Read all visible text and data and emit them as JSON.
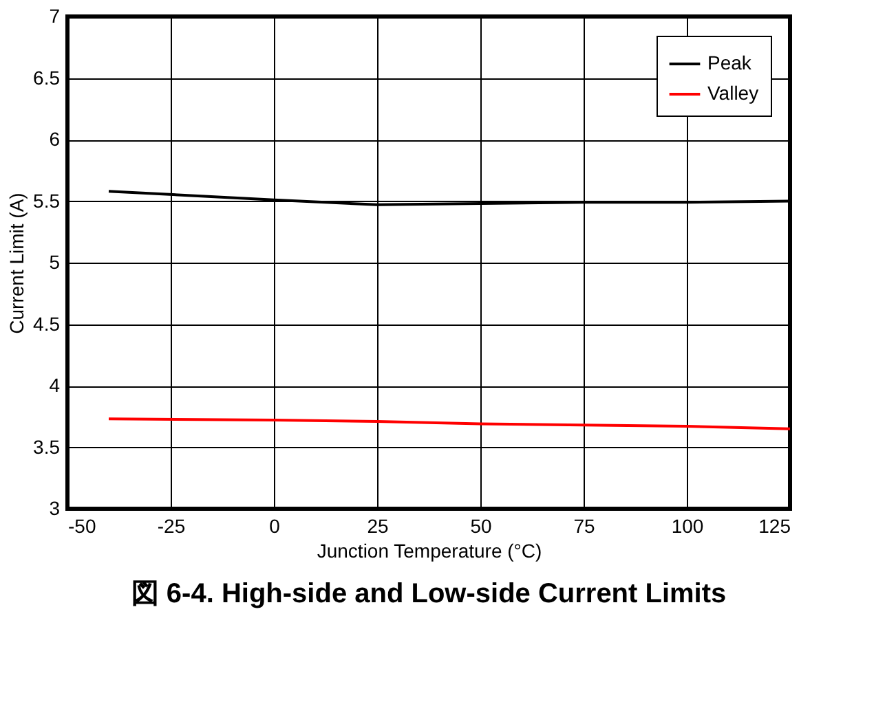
{
  "chart_data": {
    "type": "line",
    "title": "図 6-4. High-side and Low-side Current Limits",
    "xlabel": "Junction Temperature (°C)",
    "ylabel": "Current Limit (A)",
    "x": [
      -40,
      0,
      25,
      50,
      75,
      100,
      125
    ],
    "series": [
      {
        "name": "Peak",
        "color": "#000000",
        "values": [
          5.58,
          5.51,
          5.47,
          5.48,
          5.49,
          5.49,
          5.5
        ]
      },
      {
        "name": "Valley",
        "color": "#ff0000",
        "values": [
          3.73,
          3.72,
          3.71,
          3.69,
          3.68,
          3.67,
          3.65
        ]
      }
    ],
    "xlim": [
      -50,
      125
    ],
    "xticks": [
      -50,
      -25,
      0,
      25,
      50,
      75,
      100,
      125
    ],
    "ylim": [
      3,
      7
    ],
    "yticks": [
      3,
      3.5,
      4,
      4.5,
      5,
      5.5,
      6,
      6.5,
      7
    ],
    "grid": true,
    "legend": "top right"
  }
}
